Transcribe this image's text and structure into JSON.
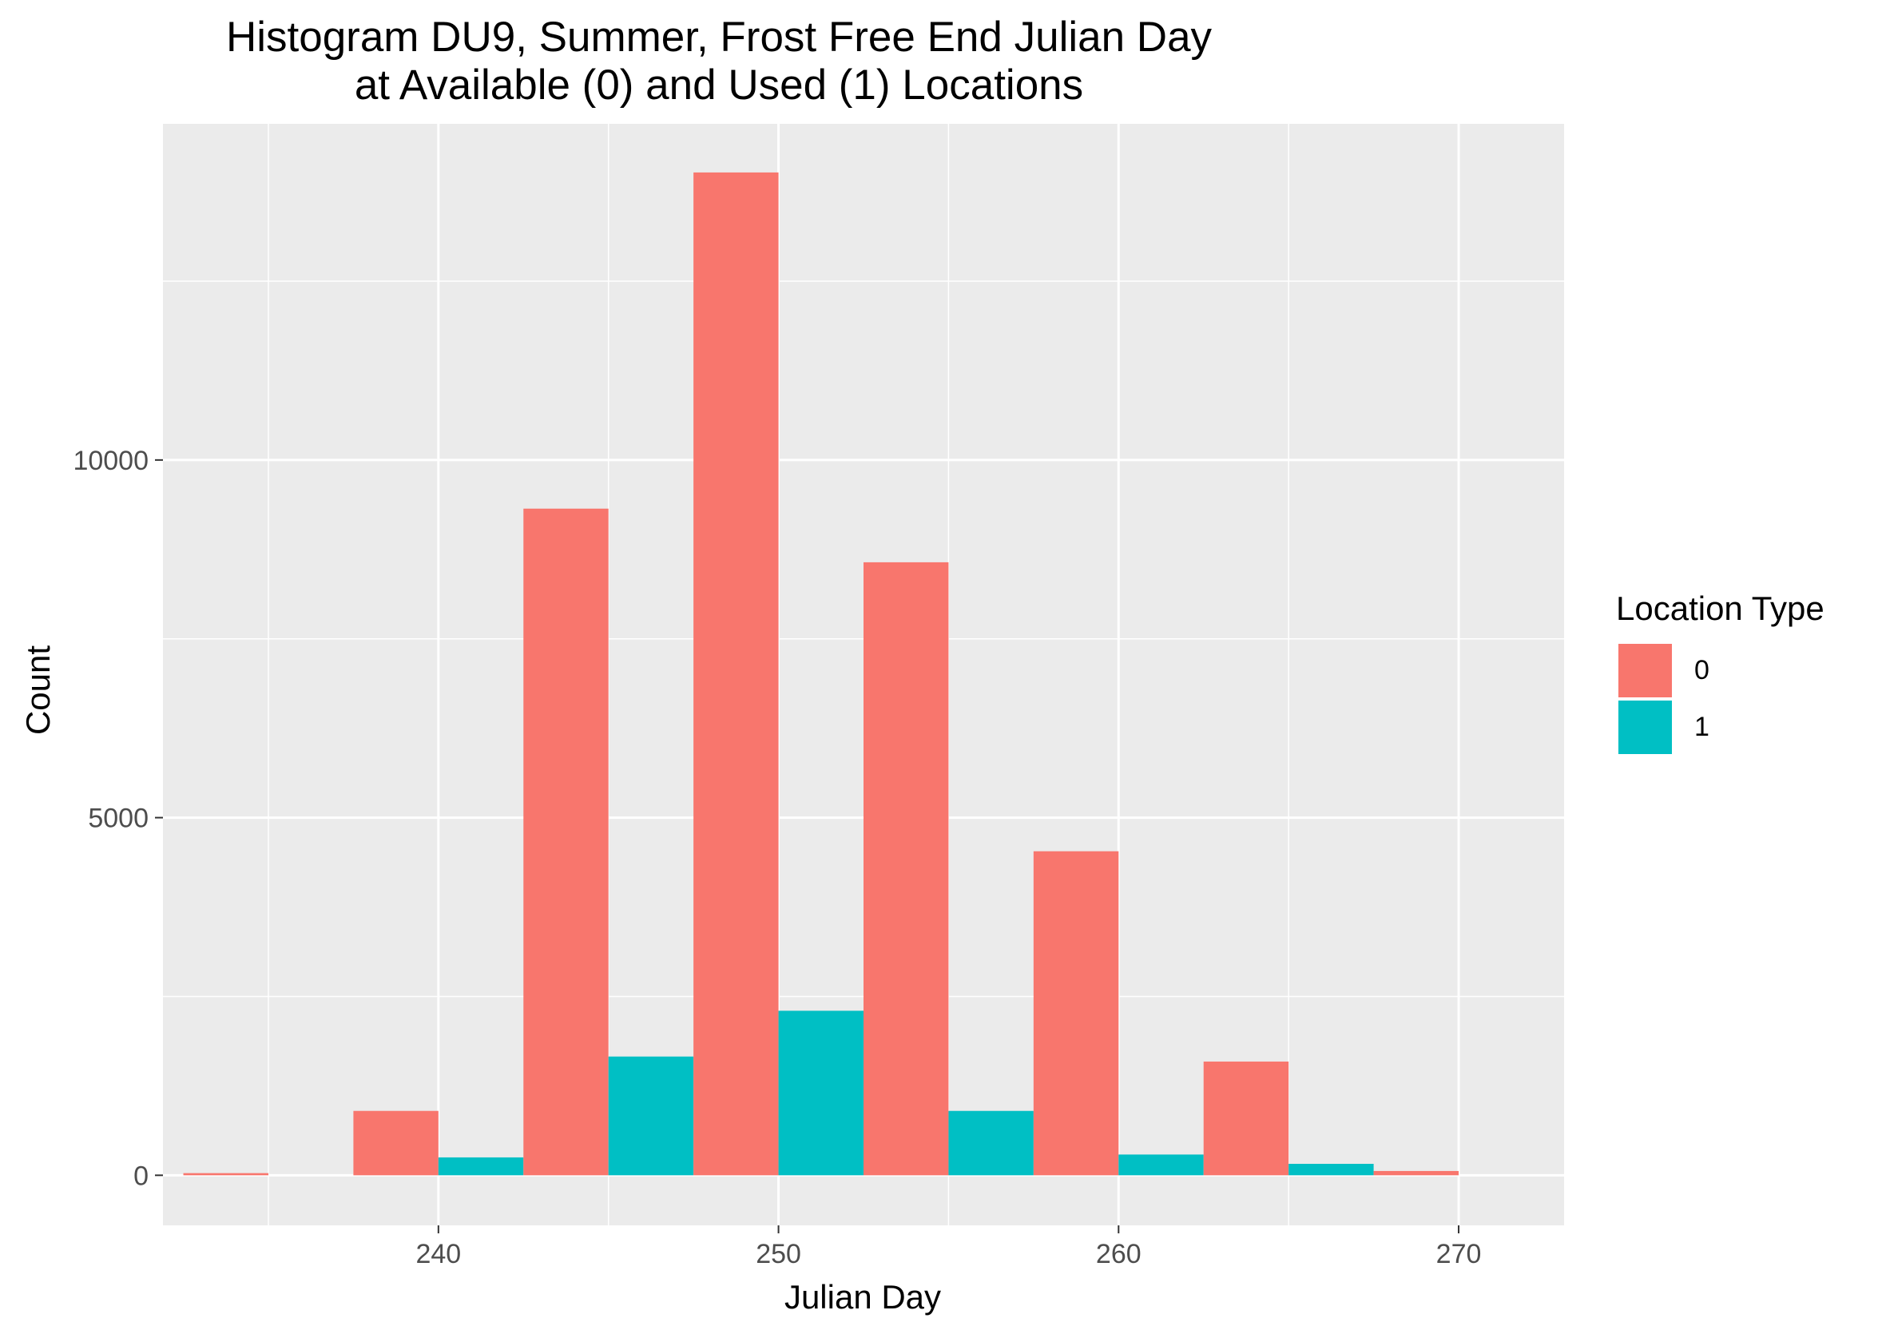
{
  "chart_data": {
    "type": "bar",
    "title": "Histogram DU9, Summer, Frost Free End Julian Day",
    "subtitle": "at Available (0) and Used (1) Locations",
    "xlabel": "Julian Day",
    "ylabel": "Count",
    "xlim": [
      231.9,
      273.1
    ],
    "ylim": [
      -700,
      14700
    ],
    "x_ticks": [
      240,
      250,
      260,
      270
    ],
    "y_ticks": [
      0,
      5000,
      10000
    ],
    "grid": true,
    "legend": {
      "title": "Location Type",
      "position": "right",
      "entries": [
        {
          "label": "0",
          "color": "#F8766D"
        },
        {
          "label": "1",
          "color": "#00BFC4"
        }
      ]
    },
    "bins": [
      {
        "x": 232.5,
        "x_end": 237.5
      },
      {
        "x": 237.5,
        "x_end": 242.5
      },
      {
        "x": 242.5,
        "x_end": 247.5
      },
      {
        "x": 247.5,
        "x_end": 252.5
      },
      {
        "x": 252.5,
        "x_end": 257.5
      },
      {
        "x": 257.5,
        "x_end": 262.5
      },
      {
        "x": 262.5,
        "x_end": 267.5
      },
      {
        "x": 267.5,
        "x_end": 272.5
      }
    ],
    "series": [
      {
        "name": "0",
        "color": "#F8766D",
        "values": [
          30,
          900,
          9320,
          14020,
          8570,
          4530,
          1590,
          60
        ]
      },
      {
        "name": "1",
        "color": "#00BFC4",
        "values": [
          0,
          250,
          1660,
          2300,
          900,
          290,
          160,
          0
        ]
      }
    ]
  }
}
